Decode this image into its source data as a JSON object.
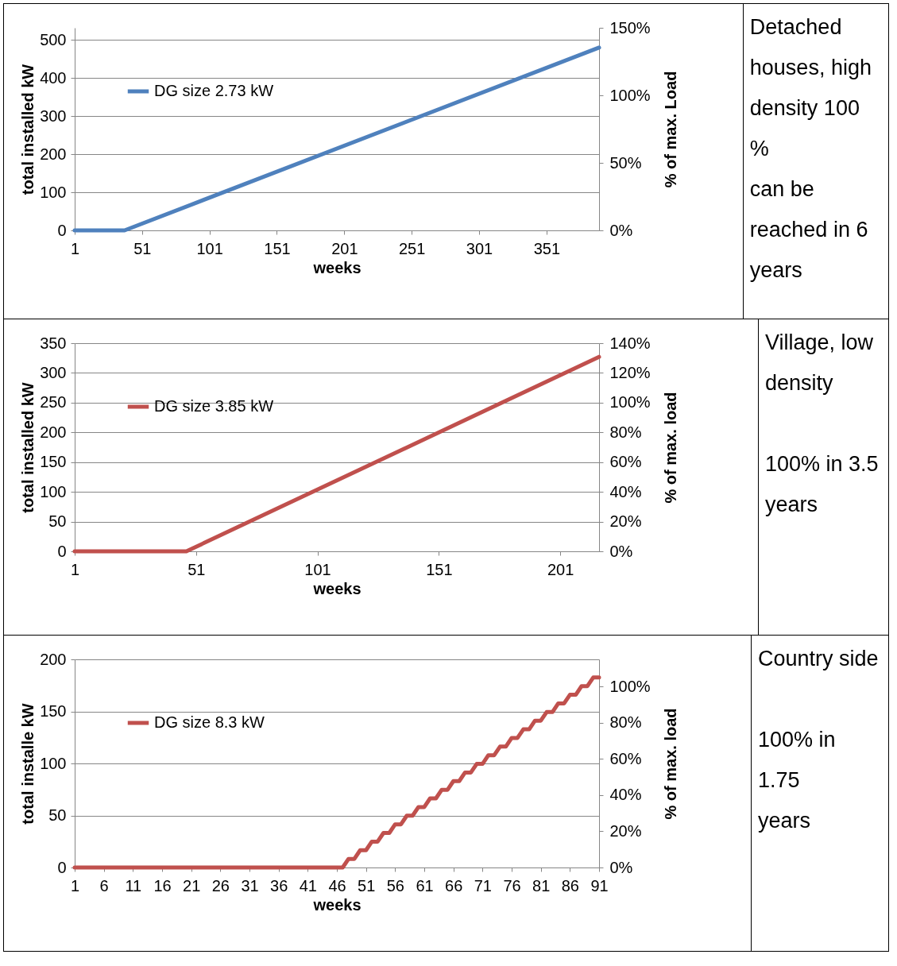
{
  "chart_data": [
    {
      "type": "line",
      "xlabel": "weeks",
      "ylabel": "total installed kW",
      "y2label": "% of max. Load",
      "xlim": [
        1,
        390
      ],
      "xticks": [
        1,
        51,
        101,
        151,
        201,
        251,
        301,
        351
      ],
      "ylim": [
        0,
        532
      ],
      "yticks": [
        0,
        100,
        200,
        300,
        400,
        500
      ],
      "y2lim": [
        0,
        150
      ],
      "y2ticks": [
        {
          "value": 0,
          "label": "0%"
        },
        {
          "value": 50,
          "label": "50%"
        },
        {
          "value": 100,
          "label": "100%"
        },
        {
          "value": 150,
          "label": "150%"
        }
      ],
      "grid": "y",
      "legend": "top left",
      "annotations": [
        "Detached houses, high density 100 % can be reached in 6 years"
      ],
      "series": [
        {
          "name": "DG size 2.73 kW",
          "color": "#4f81bd",
          "x": [
            1,
            38,
            390
          ],
          "values": [
            0,
            0,
            480
          ]
        }
      ]
    },
    {
      "type": "line",
      "xlabel": "weeks",
      "ylabel": "total installed kW",
      "y2label": "% of max. load",
      "xlim": [
        1,
        217
      ],
      "xticks": [
        1,
        51,
        101,
        151,
        201
      ],
      "ylim": [
        0,
        350
      ],
      "yticks": [
        0,
        50,
        100,
        150,
        200,
        250,
        300,
        350
      ],
      "y2lim": [
        0,
        140
      ],
      "y2ticks": [
        {
          "value": 0,
          "label": "0%"
        },
        {
          "value": 20,
          "label": "20%"
        },
        {
          "value": 40,
          "label": "40%"
        },
        {
          "value": 60,
          "label": "60%"
        },
        {
          "value": 80,
          "label": "80%"
        },
        {
          "value": 100,
          "label": "100%"
        },
        {
          "value": 120,
          "label": "120%"
        },
        {
          "value": 140,
          "label": "140%"
        }
      ],
      "grid": "y",
      "legend": "top left",
      "annotations": [
        "Village, low density",
        "100% in 3.5 years"
      ],
      "series": [
        {
          "name": "DG size 3.85 kW",
          "color": "#c0504d",
          "x": [
            1,
            47,
            217
          ],
          "values": [
            0,
            0,
            327
          ]
        }
      ]
    },
    {
      "type": "line",
      "xlabel": "weeks",
      "ylabel": "total installe kW",
      "y2label": "% of max. load",
      "xlim": [
        1,
        91
      ],
      "xticks": [
        1,
        6,
        11,
        16,
        21,
        26,
        31,
        36,
        41,
        46,
        51,
        56,
        61,
        66,
        71,
        76,
        81,
        86,
        91
      ],
      "ylim": [
        0,
        200
      ],
      "yticks": [
        0,
        50,
        100,
        150,
        200
      ],
      "y2lim": [
        0,
        115
      ],
      "y2ticks": [
        {
          "value": 0,
          "label": "0%"
        },
        {
          "value": 20,
          "label": "20%"
        },
        {
          "value": 40,
          "label": "40%"
        },
        {
          "value": 60,
          "label": "60%"
        },
        {
          "value": 80,
          "label": "80%"
        },
        {
          "value": 100,
          "label": "100%"
        }
      ],
      "grid": "y",
      "legend": "top left",
      "annotations": [
        "Country side",
        "100% in 1.75 years"
      ],
      "series": [
        {
          "name": "DG size 8.3 kW",
          "color": "#c0504d",
          "x": [
            1,
            47,
            48,
            49,
            50,
            51,
            52,
            53,
            54,
            55,
            56,
            57,
            58,
            59,
            60,
            61,
            62,
            63,
            64,
            65,
            66,
            67,
            68,
            69,
            70,
            71,
            72,
            73,
            74,
            75,
            76,
            77,
            78,
            79,
            80,
            81,
            82,
            83,
            84,
            85,
            86,
            87,
            88,
            89,
            90,
            91
          ],
          "values": [
            0,
            0,
            8.3,
            8.3,
            16.6,
            16.6,
            24.9,
            24.9,
            33.2,
            33.2,
            41.5,
            41.5,
            49.8,
            49.8,
            58.1,
            58.1,
            66.4,
            66.4,
            74.7,
            74.7,
            83,
            83,
            91.3,
            91.3,
            99.6,
            99.6,
            107.9,
            107.9,
            116.2,
            116.2,
            124.5,
            124.5,
            132.8,
            132.8,
            141.1,
            141.1,
            149.4,
            149.4,
            157.7,
            157.7,
            166,
            166,
            174.3,
            174.3,
            182.6,
            182.6
          ]
        }
      ]
    }
  ]
}
